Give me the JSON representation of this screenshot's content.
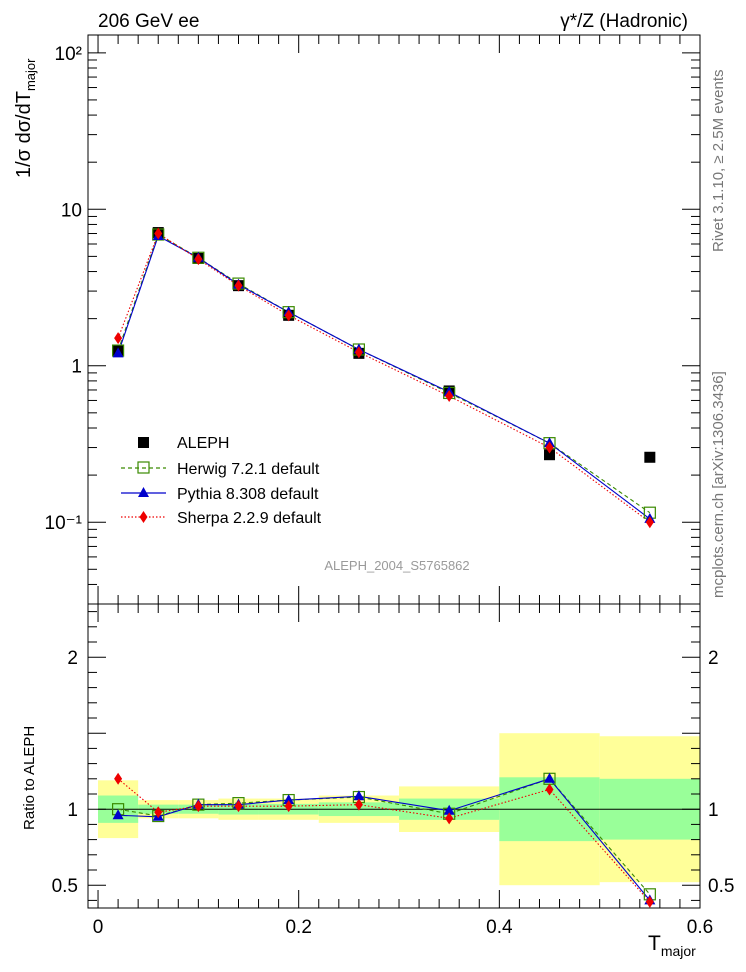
{
  "header": {
    "energy_label": "206 GeV ee",
    "process_label": "γ*/Z (Hadronic)",
    "side_label_top": "Rivet 3.1.10, ≥ 2.5M events",
    "side_label_bottom": "mcplots.cern.ch [arXiv:1306.3436]",
    "watermark": "ALEPH_2004_S5765862"
  },
  "colors": {
    "data": "#000000",
    "herwig": "#3a8a00",
    "pythia": "#0000cc",
    "sherpa": "#ee0000",
    "band_inner": "#99ff99",
    "band_outer": "#ffff99"
  },
  "chart_data": [
    {
      "id": "main",
      "type": "scatter",
      "yscale": "log",
      "ylabel": "1/σ dσ/dT_major",
      "ylim": [
        0.03,
        130
      ],
      "xlim": [
        -0.01,
        0.6
      ],
      "yticks": [
        {
          "value": 0.1,
          "label": "10⁻¹"
        },
        {
          "value": 1,
          "label": "1"
        },
        {
          "value": 10,
          "label": "10"
        },
        {
          "value": 100,
          "label": "10²"
        }
      ],
      "series": [
        {
          "name": "ALEPH",
          "key": "data",
          "x": [
            0.02,
            0.06,
            0.1,
            0.14,
            0.19,
            0.26,
            0.35,
            0.45,
            0.55
          ],
          "y": [
            1.25,
            7.1,
            4.85,
            3.25,
            2.1,
            1.2,
            0.69,
            0.27,
            0.26
          ]
        },
        {
          "name": "Herwig 7.2.1 default",
          "key": "herwig",
          "x": [
            0.02,
            0.06,
            0.1,
            0.14,
            0.19,
            0.26,
            0.35,
            0.45,
            0.55
          ],
          "y": [
            1.25,
            6.9,
            4.9,
            3.35,
            2.2,
            1.27,
            0.67,
            0.32,
            0.115
          ]
        },
        {
          "name": "Pythia 8.308 default",
          "key": "pythia",
          "x": [
            0.02,
            0.06,
            0.1,
            0.14,
            0.19,
            0.26,
            0.35,
            0.45,
            0.55
          ],
          "y": [
            1.2,
            6.75,
            4.9,
            3.3,
            2.2,
            1.27,
            0.68,
            0.32,
            0.105
          ]
        },
        {
          "name": "Sherpa 2.2.9 default",
          "key": "sherpa",
          "x": [
            0.02,
            0.06,
            0.1,
            0.14,
            0.19,
            0.26,
            0.35,
            0.45,
            0.55
          ],
          "y": [
            1.5,
            7.0,
            4.8,
            3.25,
            2.1,
            1.22,
            0.64,
            0.3,
            0.1
          ]
        }
      ]
    },
    {
      "id": "ratio",
      "type": "line",
      "ylabel": "Ratio to ALEPH",
      "xlabel": "T_major",
      "ylim": [
        0.35,
        2.35
      ],
      "xlim": [
        -0.01,
        0.6
      ],
      "yticks": [
        {
          "value": 0.5,
          "label": "0.5"
        },
        {
          "value": 1,
          "label": "1"
        },
        {
          "value": 2,
          "label": "2"
        }
      ],
      "xticks": [
        {
          "value": 0,
          "label": "0"
        },
        {
          "value": 0.2,
          "label": "0.2"
        },
        {
          "value": 0.4,
          "label": "0.4"
        },
        {
          "value": 0.6,
          "label": "0.6"
        }
      ],
      "bands": [
        {
          "x0": 0.0,
          "x1": 0.04,
          "inner": [
            0.91,
            1.09
          ],
          "outer": [
            0.81,
            1.19
          ]
        },
        {
          "x0": 0.04,
          "x1": 0.08,
          "inner": [
            0.97,
            1.03
          ],
          "outer": [
            0.94,
            1.06
          ]
        },
        {
          "x0": 0.08,
          "x1": 0.12,
          "inner": [
            0.97,
            1.03
          ],
          "outer": [
            0.94,
            1.06
          ]
        },
        {
          "x0": 0.12,
          "x1": 0.16,
          "inner": [
            0.965,
            1.035
          ],
          "outer": [
            0.93,
            1.07
          ]
        },
        {
          "x0": 0.16,
          "x1": 0.22,
          "inner": [
            0.965,
            1.035
          ],
          "outer": [
            0.93,
            1.07
          ]
        },
        {
          "x0": 0.22,
          "x1": 0.3,
          "inner": [
            0.955,
            1.045
          ],
          "outer": [
            0.91,
            1.09
          ]
        },
        {
          "x0": 0.3,
          "x1": 0.4,
          "inner": [
            0.93,
            1.07
          ],
          "outer": [
            0.85,
            1.15
          ]
        },
        {
          "x0": 0.4,
          "x1": 0.5,
          "inner": [
            0.79,
            1.21
          ],
          "outer": [
            0.5,
            1.5
          ]
        },
        {
          "x0": 0.5,
          "x1": 0.6,
          "inner": [
            0.8,
            1.2
          ],
          "outer": [
            0.52,
            1.48
          ]
        }
      ],
      "series": [
        {
          "name": "ALEPH",
          "key": "data",
          "x": [
            0.0,
            0.6
          ],
          "y": [
            1.0,
            1.0
          ]
        },
        {
          "name": "Herwig 7.2.1 default",
          "key": "herwig",
          "x": [
            0.02,
            0.06,
            0.1,
            0.14,
            0.19,
            0.26,
            0.35,
            0.45,
            0.55
          ],
          "y": [
            1.0,
            0.955,
            1.03,
            1.04,
            1.06,
            1.08,
            0.97,
            1.2,
            0.44
          ]
        },
        {
          "name": "Pythia 8.308 default",
          "key": "pythia",
          "x": [
            0.02,
            0.06,
            0.1,
            0.14,
            0.19,
            0.26,
            0.35,
            0.45,
            0.55
          ],
          "y": [
            0.96,
            0.95,
            1.03,
            1.03,
            1.06,
            1.085,
            0.99,
            1.2,
            0.4
          ]
        },
        {
          "name": "Sherpa 2.2.9 default",
          "key": "sherpa",
          "x": [
            0.02,
            0.06,
            0.1,
            0.14,
            0.19,
            0.26,
            0.35,
            0.45,
            0.55
          ],
          "y": [
            1.2,
            0.98,
            1.02,
            1.02,
            1.02,
            1.03,
            0.94,
            1.13,
            0.39
          ]
        }
      ]
    }
  ]
}
